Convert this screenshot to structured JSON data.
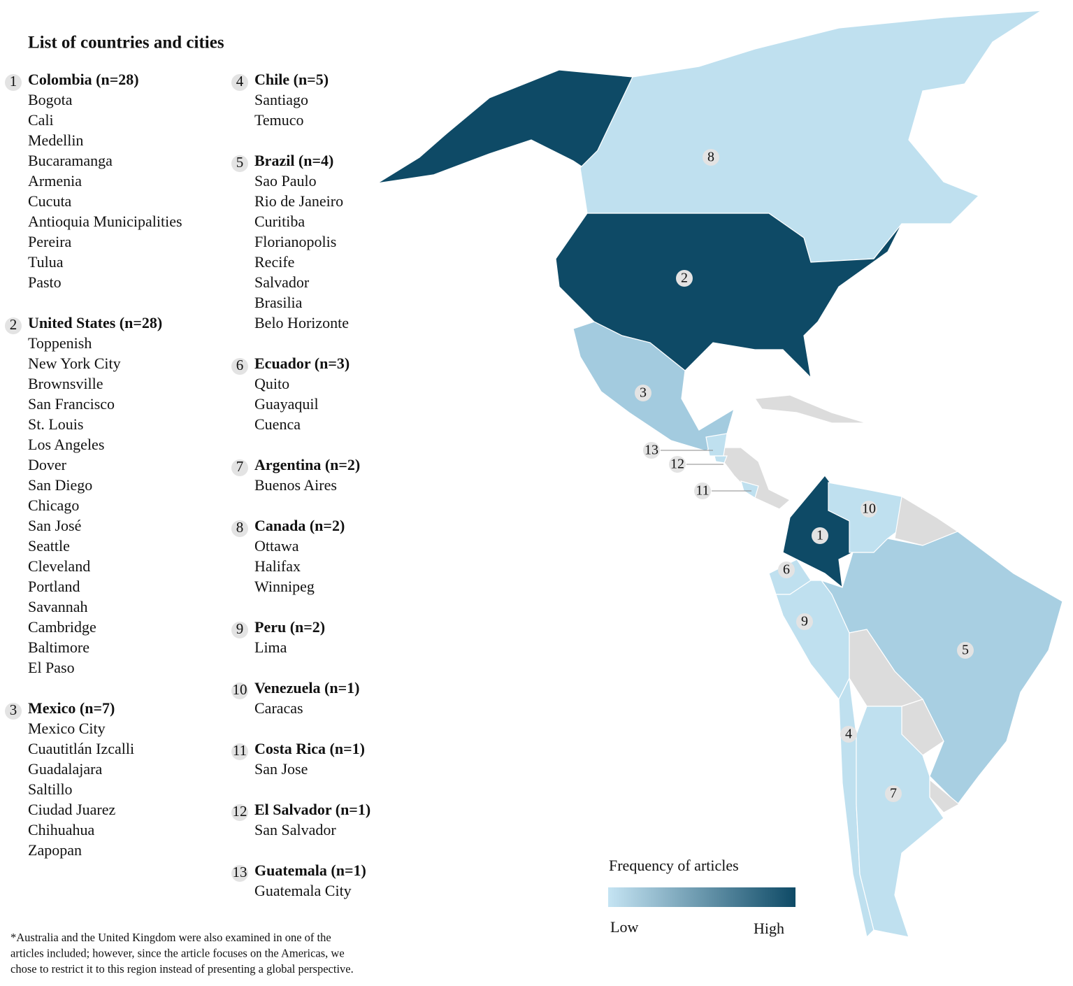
{
  "title": "List of countries and cities",
  "countries": [
    {
      "number": 1,
      "heading": "Colombia (n=28)",
      "cities": [
        "Bogota",
        "Cali",
        "Medellin",
        "Bucaramanga",
        "Armenia",
        "Cucuta",
        "Antioquia Municipalities",
        "Pereira",
        "Tulua",
        "Pasto"
      ]
    },
    {
      "number": 2,
      "heading": "United States (n=28)",
      "cities": [
        "Toppenish",
        "New York City",
        "Brownsville",
        "San Francisco",
        "St. Louis",
        "Los Angeles",
        "Dover",
        "San Diego",
        "Chicago",
        "San José",
        "Seattle",
        "Cleveland",
        "Portland",
        "Savannah",
        "Cambridge",
        "Baltimore",
        "El Paso"
      ]
    },
    {
      "number": 3,
      "heading": "Mexico (n=7)",
      "cities": [
        "Mexico City",
        "Cuautitlán Izcalli",
        "Guadalajara",
        "Saltillo",
        "Ciudad Juarez",
        "Chihuahua",
        "Zapopan"
      ]
    },
    {
      "number": 4,
      "heading": "Chile (n=5)",
      "cities": [
        "Santiago",
        "Temuco"
      ]
    },
    {
      "number": 5,
      "heading": "Brazil (n=4)",
      "cities": [
        "Sao Paulo",
        "Rio de Janeiro",
        "Curitiba",
        "Florianopolis",
        "Recife",
        "Salvador",
        "Brasilia",
        "Belo Horizonte"
      ]
    },
    {
      "number": 6,
      "heading": "Ecuador (n=3)",
      "cities": [
        "Quito",
        "Guayaquil",
        "Cuenca"
      ]
    },
    {
      "number": 7,
      "heading": "Argentina (n=2)",
      "cities": [
        "Buenos Aires"
      ]
    },
    {
      "number": 8,
      "heading": "Canada (n=2)",
      "cities": [
        "Ottawa",
        "Halifax",
        "Winnipeg"
      ]
    },
    {
      "number": 9,
      "heading": "Peru (n=2)",
      "cities": [
        "Lima"
      ]
    },
    {
      "number": 10,
      "heading": "Venezuela (n=1)",
      "cities": [
        "Caracas"
      ]
    },
    {
      "number": 11,
      "heading": "Costa Rica (n=1)",
      "cities": [
        "San Jose"
      ]
    },
    {
      "number": 12,
      "heading": "El Salvador (n=1)",
      "cities": [
        "San Salvador"
      ]
    },
    {
      "number": 13,
      "heading": "Guatemala (n=1)",
      "cities": [
        "Guatemala City"
      ]
    }
  ],
  "legend": {
    "title": "Frequency of articles",
    "low": "Low",
    "high": "High"
  },
  "footnote": [
    "*Australia and the United Kingdom were also examined in one of the",
    "articles included; however, since the article focuses on the Americas, we",
    "chose to restrict it to this region instead of presenting a global perspective."
  ]
}
